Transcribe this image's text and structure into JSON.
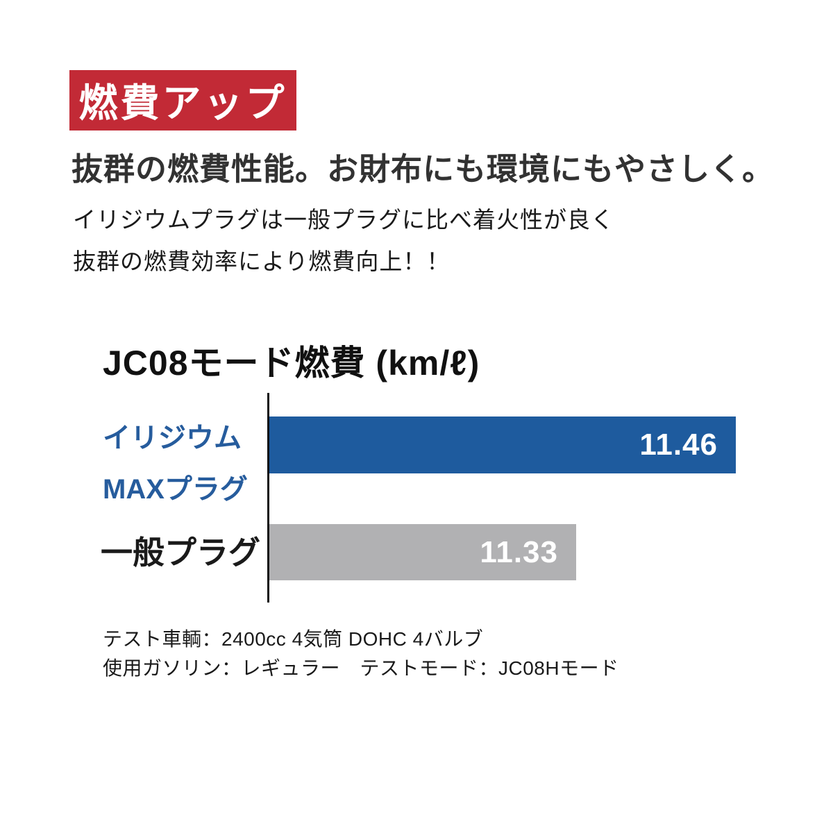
{
  "badge": {
    "label": "燃費アップ",
    "bg_color": "#c22a36",
    "text_color": "#ffffff"
  },
  "headline": "抜群の燃費性能。お財布にも環境にもやさしく。",
  "body": {
    "line1": "イリジウムプラグは一般プラグに比べ着火性が良く",
    "line2": "抜群の燃費効率により燃費向上！！"
  },
  "chart_data": {
    "type": "bar",
    "orientation": "horizontal",
    "title": "JC08モード燃費 (km/ℓ)",
    "unit": "km/ℓ",
    "categories": [
      "イリジウムMAXプラグ",
      "一般プラグ"
    ],
    "values": [
      11.46,
      11.33
    ],
    "xlim": [
      11.08,
      11.46
    ],
    "grid": false,
    "legend": "none",
    "series": [
      {
        "label_lines": [
          "イリジウム",
          "MAXプラグ"
        ],
        "value": 11.46,
        "value_label": "11.46",
        "bar_color": "#1e5b9e",
        "label_color": "#265c9d"
      },
      {
        "label_lines": [
          "一般プラグ"
        ],
        "value": 11.33,
        "value_label": "11.33",
        "bar_color": "#b1b1b3",
        "label_color": "#1a1a1a"
      }
    ]
  },
  "footnotes": {
    "line1": "テスト車輌：2400cc 4気筒 DOHC 4バルブ",
    "line2": "使用ガソリン：レギュラー　テストモード：JC08Hモード"
  }
}
